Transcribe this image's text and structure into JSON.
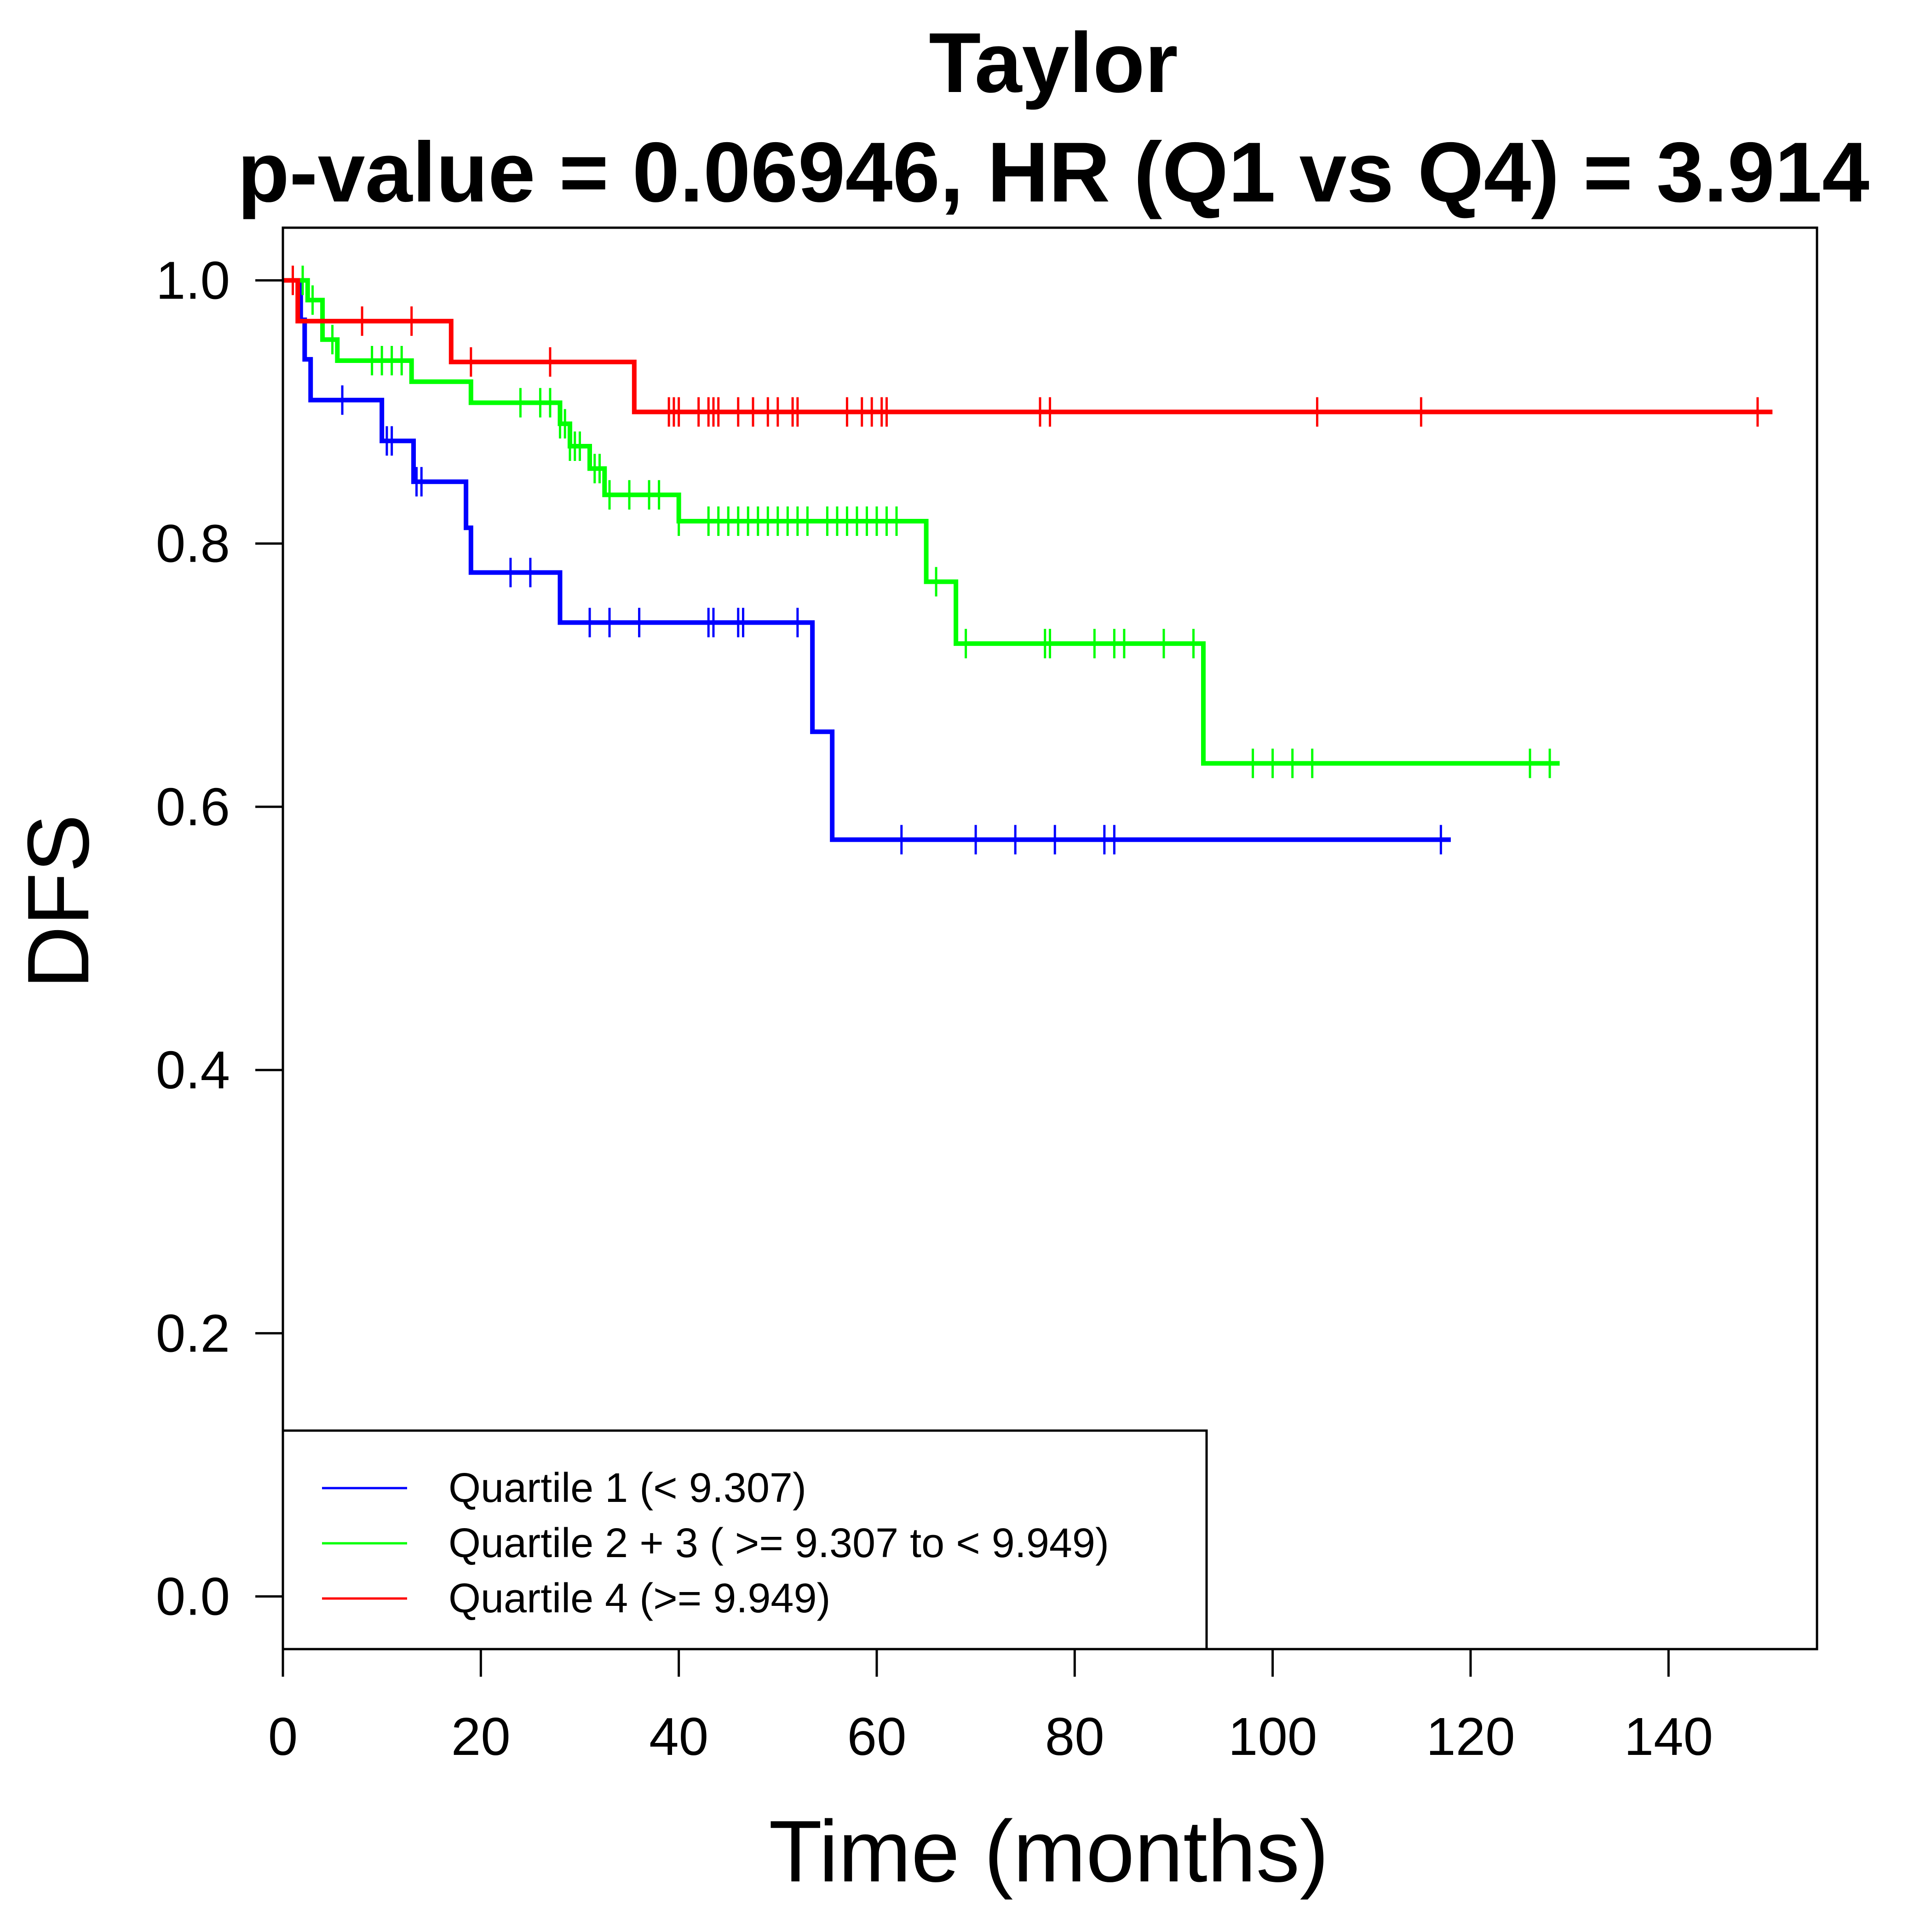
{
  "chart_data": {
    "type": "line",
    "subtype": "kaplan-meier step curves with censor marks",
    "title": "Taylor",
    "subtitle": "p-value = 0.06946, HR (Q1 vs Q4) = 3.914",
    "xlabel": "Time (months)",
    "ylabel": "DFS",
    "xlim": [
      0,
      155
    ],
    "ylim": [
      -0.04,
      1.04
    ],
    "xticks": [
      0,
      20,
      40,
      60,
      80,
      100,
      120,
      140
    ],
    "xtick_labels": [
      "0",
      "20",
      "40",
      "60",
      "80",
      "100",
      "120",
      "140"
    ],
    "yticks": [
      0.0,
      0.2,
      0.4,
      0.6,
      0.8,
      1.0
    ],
    "ytick_labels": [
      "0.0",
      "0.2",
      "0.4",
      "0.6",
      "0.8",
      "1.0"
    ],
    "grid": false,
    "legend_position": "bottom-left",
    "series": [
      {
        "name": "Quartile 1 (< 9.307)",
        "color": "#0000ff",
        "steps": [
          [
            0,
            1.0
          ],
          [
            1.8,
            0.97
          ],
          [
            2.2,
            0.94
          ],
          [
            2.8,
            0.909
          ],
          [
            10,
            0.878
          ],
          [
            13.2,
            0.847
          ],
          [
            18.5,
            0.812
          ],
          [
            19,
            0.778
          ],
          [
            28,
            0.74
          ],
          [
            53.5,
            0.657
          ],
          [
            55.5,
            0.575
          ],
          [
            118,
            0.575
          ]
        ],
        "censor_times": [
          6,
          10.5,
          11,
          13.5,
          14,
          23,
          25,
          31,
          33,
          36,
          43,
          43.5,
          46,
          46.5,
          52,
          62.5,
          70,
          74,
          78,
          83,
          84,
          117
        ]
      },
      {
        "name": "Quartile 2 + 3 ( >= 9.307 to < 9.949)",
        "color": "#00ff00",
        "steps": [
          [
            0,
            1.0
          ],
          [
            2.5,
            0.985
          ],
          [
            4,
            0.955
          ],
          [
            5.5,
            0.939
          ],
          [
            13,
            0.923
          ],
          [
            19,
            0.907
          ],
          [
            28,
            0.891
          ],
          [
            29,
            0.874
          ],
          [
            31,
            0.857
          ],
          [
            32.5,
            0.837
          ],
          [
            40,
            0.817
          ],
          [
            65,
            0.771
          ],
          [
            68,
            0.724
          ],
          [
            93,
            0.633
          ],
          [
            129,
            0.633
          ]
        ],
        "censor_times": [
          1,
          2,
          3,
          5,
          9,
          10,
          11,
          12,
          24,
          26,
          27,
          28,
          28.5,
          29,
          29.5,
          30,
          31.5,
          32,
          33,
          35,
          37,
          38,
          40,
          43,
          44,
          45,
          46,
          47,
          48,
          49,
          50,
          51,
          52,
          53,
          55,
          56,
          57,
          58,
          59,
          60,
          61,
          62,
          66,
          69,
          77,
          77.5,
          82,
          84,
          85,
          89,
          92,
          98,
          100,
          102,
          104,
          126,
          128
        ]
      },
      {
        "name": "Quartile 4 (>= 9.949)",
        "color": "#ff0000",
        "steps": [
          [
            0,
            1.0
          ],
          [
            1.5,
            0.969
          ],
          [
            17,
            0.938
          ],
          [
            35.5,
            0.9
          ],
          [
            150.5,
            0.9
          ]
        ],
        "censor_times": [
          1,
          8,
          13,
          19,
          27,
          39,
          39.5,
          40,
          42,
          43,
          43.5,
          44,
          46,
          47.5,
          49,
          50,
          51.5,
          52,
          57,
          58.5,
          59.5,
          60.5,
          61,
          76.5,
          77.5,
          104.5,
          115,
          149
        ]
      }
    ]
  }
}
